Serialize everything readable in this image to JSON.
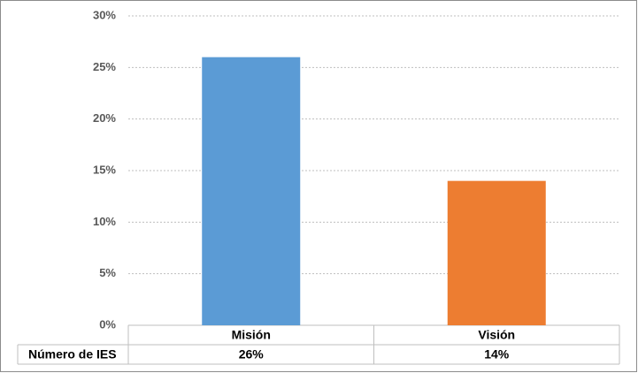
{
  "chart_data": {
    "type": "bar",
    "categories": [
      "Misión",
      "Visión"
    ],
    "series": [
      {
        "name": "Número de IES",
        "colors": [
          "#5b9bd5",
          "#ed7d31"
        ],
        "values": [
          26,
          14
        ],
        "value_labels": [
          "26%",
          "14%"
        ]
      }
    ],
    "ylim": [
      0,
      30
    ],
    "yticks": [
      {
        "value": 0,
        "label": "0%"
      },
      {
        "value": 5,
        "label": "5%"
      },
      {
        "value": 10,
        "label": "10%"
      },
      {
        "value": 15,
        "label": "15%"
      },
      {
        "value": 20,
        "label": "20%"
      },
      {
        "value": 25,
        "label": "25%"
      },
      {
        "value": 30,
        "label": "30%"
      }
    ],
    "grid": true
  }
}
